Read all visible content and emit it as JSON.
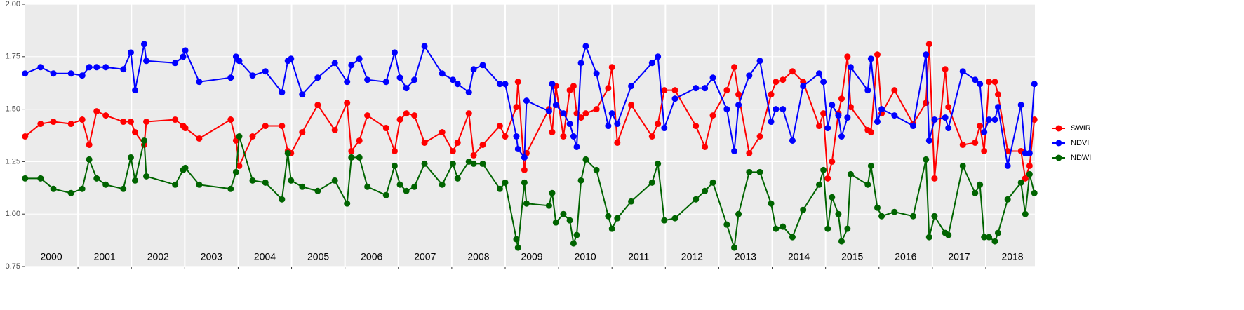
{
  "chart_data": {
    "type": "line",
    "x": [
      2000.01,
      2000.3,
      2000.54,
      2000.87,
      2001.08,
      2001.21,
      2001.35,
      2001.52,
      2001.85,
      2001.99,
      2002.07,
      2002.24,
      2002.28,
      2002.82,
      2002.97,
      2003.01,
      2003.27,
      2003.86,
      2003.96,
      2004.02,
      2004.27,
      2004.51,
      2004.82,
      2004.93,
      2004.99,
      2005.2,
      2005.49,
      2005.81,
      2006.04,
      2006.12,
      2006.27,
      2006.42,
      2006.77,
      2006.93,
      2007.03,
      2007.15,
      2007.3,
      2007.49,
      2007.82,
      2008.02,
      2008.11,
      2008.32,
      2008.41,
      2008.58,
      2008.9,
      2009.0,
      2009.21,
      2009.24,
      2009.36,
      2009.4,
      2009.82,
      2009.88,
      2009.95,
      2010.09,
      2010.21,
      2010.28,
      2010.34,
      2010.42,
      2010.51,
      2010.71,
      2010.93,
      2011.0,
      2011.1,
      2011.36,
      2011.75,
      2011.86,
      2011.98,
      2012.18,
      2012.57,
      2012.74,
      2012.89,
      2013.15,
      2013.29,
      2013.37,
      2013.57,
      2013.77,
      2013.98,
      2014.07,
      2014.2,
      2014.38,
      2014.58,
      2014.88,
      2014.96,
      2015.04,
      2015.12,
      2015.24,
      2015.3,
      2015.41,
      2015.47,
      2015.79,
      2015.85,
      2015.97,
      2016.05,
      2016.29,
      2016.64,
      2016.88,
      2016.94,
      2017.04,
      2017.24,
      2017.3,
      2017.57,
      2017.8,
      2017.89,
      2017.97,
      2018.06,
      2018.17,
      2018.23,
      2018.41,
      2018.66,
      2018.74,
      2018.82,
      2018.91
    ],
    "series": [
      {
        "name": "SWIR",
        "color": "#ff0000",
        "values": [
          1.37,
          1.43,
          1.44,
          1.43,
          1.45,
          1.33,
          1.49,
          1.47,
          1.44,
          1.44,
          1.39,
          1.33,
          1.44,
          1.45,
          1.42,
          1.41,
          1.36,
          1.45,
          1.35,
          1.23,
          1.37,
          1.42,
          1.42,
          1.3,
          1.29,
          1.39,
          1.52,
          1.4,
          1.53,
          1.3,
          1.35,
          1.47,
          1.41,
          1.3,
          1.45,
          1.48,
          1.47,
          1.34,
          1.39,
          1.3,
          1.34,
          1.48,
          1.28,
          1.33,
          1.42,
          1.37,
          1.51,
          1.63,
          1.21,
          1.29,
          1.5,
          1.39,
          1.61,
          1.37,
          1.59,
          1.61,
          1.48,
          1.46,
          1.48,
          1.5,
          1.6,
          1.7,
          1.34,
          1.52,
          1.37,
          1.43,
          1.59,
          1.59,
          1.42,
          1.32,
          1.47,
          1.59,
          1.7,
          1.57,
          1.29,
          1.37,
          1.57,
          1.63,
          1.64,
          1.68,
          1.63,
          1.42,
          1.48,
          1.17,
          1.25,
          1.48,
          1.55,
          1.75,
          1.51,
          1.4,
          1.39,
          1.76,
          1.48,
          1.59,
          1.43,
          1.53,
          1.81,
          1.17,
          1.69,
          1.51,
          1.33,
          1.34,
          1.42,
          1.3,
          1.63,
          1.63,
          1.57,
          1.3,
          1.3,
          1.17,
          1.23,
          1.45
        ]
      },
      {
        "name": "NDVI",
        "color": "#0000ff",
        "values": [
          1.67,
          1.7,
          1.67,
          1.67,
          1.66,
          1.7,
          1.7,
          1.7,
          1.69,
          1.77,
          1.59,
          1.81,
          1.73,
          1.72,
          1.75,
          1.78,
          1.63,
          1.65,
          1.75,
          1.73,
          1.66,
          1.68,
          1.58,
          1.73,
          1.74,
          1.57,
          1.65,
          1.72,
          1.63,
          1.71,
          1.74,
          1.64,
          1.63,
          1.77,
          1.65,
          1.6,
          1.64,
          1.8,
          1.67,
          1.64,
          1.62,
          1.58,
          1.69,
          1.71,
          1.62,
          1.62,
          1.37,
          1.31,
          1.27,
          1.54,
          1.49,
          1.62,
          1.52,
          1.48,
          1.43,
          1.37,
          1.32,
          1.72,
          1.8,
          1.67,
          1.42,
          1.48,
          1.43,
          1.61,
          1.72,
          1.75,
          1.41,
          1.55,
          1.6,
          1.6,
          1.65,
          1.5,
          1.3,
          1.52,
          1.66,
          1.73,
          1.44,
          1.5,
          1.5,
          1.35,
          1.61,
          1.67,
          1.63,
          1.41,
          1.52,
          1.47,
          1.37,
          1.46,
          1.7,
          1.59,
          1.74,
          1.44,
          1.5,
          1.47,
          1.42,
          1.76,
          1.35,
          1.45,
          1.46,
          1.41,
          1.68,
          1.64,
          1.62,
          1.39,
          1.45,
          1.45,
          1.51,
          1.23,
          1.52,
          1.29,
          1.29,
          1.62
        ]
      },
      {
        "name": "NDWI",
        "color": "#006400",
        "values": [
          1.17,
          1.17,
          1.12,
          1.1,
          1.12,
          1.26,
          1.17,
          1.14,
          1.12,
          1.27,
          1.16,
          1.35,
          1.18,
          1.14,
          1.21,
          1.22,
          1.14,
          1.12,
          1.2,
          1.37,
          1.16,
          1.15,
          1.07,
          1.29,
          1.16,
          1.13,
          1.11,
          1.16,
          1.05,
          1.27,
          1.27,
          1.13,
          1.09,
          1.23,
          1.14,
          1.11,
          1.13,
          1.24,
          1.14,
          1.24,
          1.17,
          1.25,
          1.24,
          1.24,
          1.12,
          1.15,
          0.88,
          0.84,
          1.15,
          1.05,
          1.04,
          1.1,
          0.96,
          1.0,
          0.97,
          0.86,
          0.9,
          1.16,
          1.26,
          1.21,
          0.99,
          0.93,
          0.98,
          1.06,
          1.15,
          1.24,
          0.97,
          0.98,
          1.07,
          1.11,
          1.15,
          0.95,
          0.84,
          1.0,
          1.2,
          1.2,
          1.05,
          0.93,
          0.94,
          0.89,
          1.02,
          1.14,
          1.21,
          0.93,
          1.08,
          1.0,
          0.87,
          0.93,
          1.19,
          1.14,
          1.23,
          1.03,
          0.99,
          1.01,
          0.99,
          1.26,
          0.89,
          0.99,
          0.91,
          0.9,
          1.23,
          1.1,
          1.14,
          0.89,
          0.89,
          0.87,
          0.91,
          1.07,
          1.15,
          1.0,
          1.19,
          1.1
        ]
      }
    ],
    "xlim": [
      2000,
      2018.92
    ],
    "xticks": [
      2001,
      2002,
      2003,
      2004,
      2005,
      2006,
      2007,
      2008,
      2009,
      2010,
      2011,
      2012,
      2013,
      2014,
      2015,
      2016,
      2017,
      2018
    ],
    "year_labels": [
      {
        "value": 2000.5,
        "label": "2000"
      },
      {
        "value": 2001.5,
        "label": "2001"
      },
      {
        "value": 2002.5,
        "label": "2002"
      },
      {
        "value": 2003.5,
        "label": "2003"
      },
      {
        "value": 2004.5,
        "label": "2004"
      },
      {
        "value": 2005.5,
        "label": "2005"
      },
      {
        "value": 2006.5,
        "label": "2006"
      },
      {
        "value": 2007.5,
        "label": "2007"
      },
      {
        "value": 2008.5,
        "label": "2008"
      },
      {
        "value": 2009.5,
        "label": "2009"
      },
      {
        "value": 2010.5,
        "label": "2010"
      },
      {
        "value": 2011.5,
        "label": "2011"
      },
      {
        "value": 2012.5,
        "label": "2012"
      },
      {
        "value": 2013.5,
        "label": "2013"
      },
      {
        "value": 2014.5,
        "label": "2014"
      },
      {
        "value": 2015.5,
        "label": "2015"
      },
      {
        "value": 2016.5,
        "label": "2016"
      },
      {
        "value": 2017.5,
        "label": "2017"
      },
      {
        "value": 2018.5,
        "label": "2018"
      }
    ],
    "ylim": [
      0.75,
      2.0
    ],
    "yticks": [
      0.75,
      {
        "value": 1.0,
        "label": "1.00"
      },
      1.25,
      {
        "value": 1.5,
        "label": "1.50"
      },
      1.75,
      {
        "value": 2.0,
        "label": "2.00"
      }
    ],
    "grid": true,
    "legend": "right"
  }
}
